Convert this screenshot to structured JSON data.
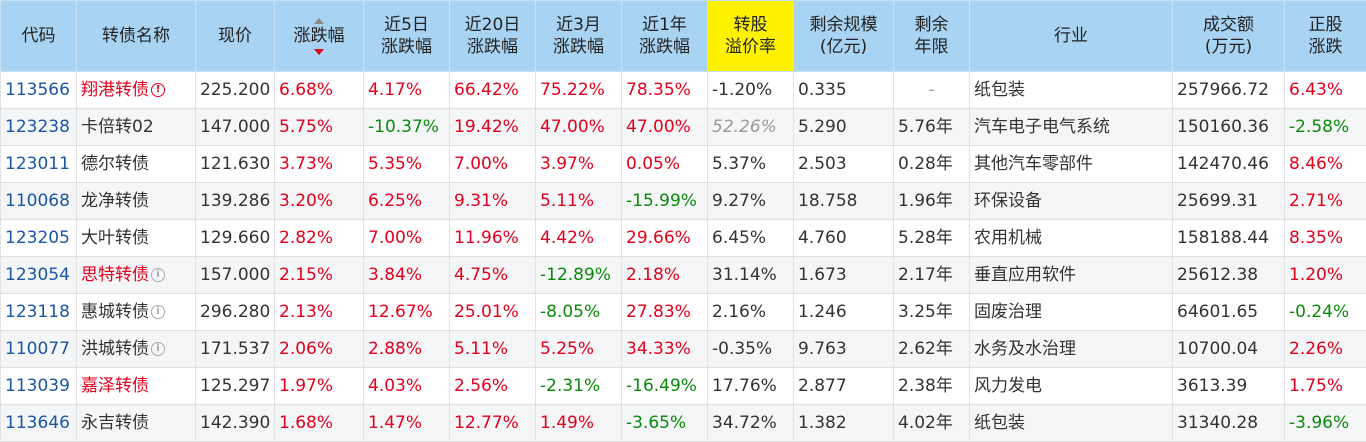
{
  "columns": [
    "代码",
    "转债名称",
    "现价",
    "涨跌幅",
    "近5日\n涨跌幅",
    "近20日\n涨跌幅",
    "近3月\n涨跌幅",
    "近1年\n涨跌幅",
    "转股\n溢价率",
    "剩余规模\n(亿元)",
    "剩余\n年限",
    "行业",
    "成交额\n(万元)",
    "正股\n涨跌"
  ],
  "sort": {
    "column": "涨跌幅",
    "direction": "desc"
  },
  "colors": {
    "up": "#e4001c",
    "down": "#0a8a0a",
    "code": "#1a56a6",
    "header_bg": "#a9d3f2",
    "highlight_header_bg": "#fff200"
  },
  "rows": [
    {
      "code": "113566",
      "name": "翔港转债",
      "name_red": true,
      "icon": "red",
      "price": "225.200",
      "chg": "6.68%",
      "d5": "4.17%",
      "d20": "66.42%",
      "m3": "75.22%",
      "y1": "78.35%",
      "premium": "-1.20%",
      "premium_grey": false,
      "scale": "0.335",
      "years": "-",
      "industry": "纸包装",
      "turnover": "257966.72",
      "stock_chg": "6.43%"
    },
    {
      "code": "123238",
      "name": "卡倍转02",
      "name_red": false,
      "icon": "",
      "price": "147.000",
      "chg": "5.75%",
      "d5": "-10.37%",
      "d20": "19.42%",
      "m3": "47.00%",
      "y1": "47.00%",
      "premium": "52.26%",
      "premium_grey": true,
      "scale": "5.290",
      "years": "5.76年",
      "industry": "汽车电子电气系统",
      "turnover": "150160.36",
      "stock_chg": "-2.58%"
    },
    {
      "code": "123011",
      "name": "德尔转债",
      "name_red": false,
      "icon": "",
      "price": "121.630",
      "chg": "3.73%",
      "d5": "5.35%",
      "d20": "7.00%",
      "m3": "3.97%",
      "y1": "0.05%",
      "premium": "5.37%",
      "premium_grey": false,
      "scale": "2.503",
      "years": "0.28年",
      "industry": "其他汽车零部件",
      "turnover": "142470.46",
      "stock_chg": "8.46%"
    },
    {
      "code": "110068",
      "name": "龙净转债",
      "name_red": false,
      "icon": "",
      "price": "139.286",
      "chg": "3.20%",
      "d5": "6.25%",
      "d20": "9.31%",
      "m3": "5.11%",
      "y1": "-15.99%",
      "premium": "9.27%",
      "premium_grey": false,
      "scale": "18.758",
      "years": "1.96年",
      "industry": "环保设备",
      "turnover": "25699.31",
      "stock_chg": "2.71%"
    },
    {
      "code": "123205",
      "name": "大叶转债",
      "name_red": false,
      "icon": "",
      "price": "129.660",
      "chg": "2.82%",
      "d5": "7.00%",
      "d20": "11.96%",
      "m3": "4.42%",
      "y1": "29.66%",
      "premium": "6.45%",
      "premium_grey": false,
      "scale": "4.760",
      "years": "5.28年",
      "industry": "农用机械",
      "turnover": "158188.44",
      "stock_chg": "8.35%"
    },
    {
      "code": "123054",
      "name": "思特转债",
      "name_red": true,
      "icon": "grey",
      "price": "157.000",
      "chg": "2.15%",
      "d5": "3.84%",
      "d20": "4.75%",
      "m3": "-12.89%",
      "y1": "2.18%",
      "premium": "31.14%",
      "premium_grey": false,
      "scale": "1.673",
      "years": "2.17年",
      "industry": "垂直应用软件",
      "turnover": "25612.38",
      "stock_chg": "1.20%"
    },
    {
      "code": "123118",
      "name": "惠城转债",
      "name_red": false,
      "icon": "grey",
      "price": "296.280",
      "chg": "2.13%",
      "d5": "12.67%",
      "d20": "25.01%",
      "m3": "-8.05%",
      "y1": "27.83%",
      "premium": "2.16%",
      "premium_grey": false,
      "scale": "1.246",
      "years": "3.25年",
      "industry": "固废治理",
      "turnover": "64601.65",
      "stock_chg": "-0.24%"
    },
    {
      "code": "110077",
      "name": "洪城转债",
      "name_red": false,
      "icon": "grey",
      "price": "171.537",
      "chg": "2.06%",
      "d5": "2.88%",
      "d20": "5.11%",
      "m3": "5.25%",
      "y1": "34.33%",
      "premium": "-0.35%",
      "premium_grey": false,
      "scale": "9.763",
      "years": "2.62年",
      "industry": "水务及水治理",
      "turnover": "10700.04",
      "stock_chg": "2.26%"
    },
    {
      "code": "113039",
      "name": "嘉泽转债",
      "name_red": true,
      "icon": "",
      "price": "125.297",
      "chg": "1.97%",
      "d5": "4.03%",
      "d20": "2.56%",
      "m3": "-2.31%",
      "y1": "-16.49%",
      "premium": "17.76%",
      "premium_grey": false,
      "scale": "2.877",
      "years": "2.38年",
      "industry": "风力发电",
      "turnover": "3613.39",
      "stock_chg": "1.75%"
    },
    {
      "code": "113646",
      "name": "永吉转债",
      "name_red": false,
      "icon": "",
      "price": "142.390",
      "chg": "1.68%",
      "d5": "1.47%",
      "d20": "12.77%",
      "m3": "1.49%",
      "y1": "-3.65%",
      "premium": "34.72%",
      "premium_grey": false,
      "scale": "1.382",
      "years": "4.02年",
      "industry": "纸包装",
      "turnover": "31340.28",
      "stock_chg": "-3.96%"
    }
  ]
}
